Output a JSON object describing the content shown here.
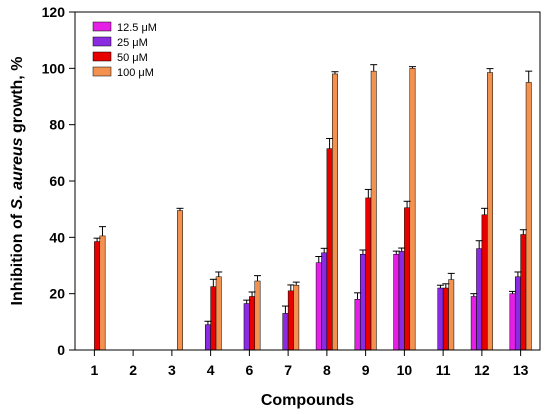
{
  "chart_data": {
    "type": "bar",
    "xlabel": "Compounds",
    "ylabel": {
      "prefix": "Inhibition of ",
      "italic": "S. aureus",
      "suffix": " growth, %"
    },
    "ylim": [
      0,
      120
    ],
    "yticks": [
      "0",
      "20",
      "40",
      "60",
      "80",
      "100",
      "120"
    ],
    "categories": [
      "1",
      "2",
      "3",
      "4",
      "6",
      "7",
      "8",
      "9",
      "10",
      "11",
      "12",
      "13"
    ],
    "legend_position": "top-left",
    "grid": false,
    "series": [
      {
        "name": "12.5 μM",
        "color": "#e61fe6",
        "values": [
          null,
          null,
          null,
          null,
          null,
          null,
          31,
          18,
          34,
          null,
          19,
          20
        ],
        "errors": [
          null,
          null,
          null,
          null,
          null,
          null,
          2.2,
          2.3,
          1.1,
          null,
          1.0,
          0.8
        ]
      },
      {
        "name": "25 μM",
        "color": "#8a2be2",
        "values": [
          null,
          null,
          null,
          9,
          16.5,
          13,
          34.5,
          34,
          35,
          22,
          36,
          26
        ],
        "errors": [
          null,
          null,
          null,
          1.2,
          1.2,
          2.6,
          1.6,
          1.5,
          1.2,
          1.0,
          2.8,
          1.7
        ]
      },
      {
        "name": "50 μM",
        "color": "#e60000",
        "values": [
          38.5,
          null,
          null,
          22.5,
          19,
          21,
          71.5,
          54,
          50.5,
          22,
          48,
          41
        ],
        "errors": [
          1.2,
          null,
          null,
          2.6,
          1.6,
          2.1,
          3.6,
          3.0,
          2.3,
          1.5,
          2.3,
          1.7
        ]
      },
      {
        "name": "100 μM",
        "color": "#f39150",
        "values": [
          40.5,
          null,
          49.5,
          26,
          24.5,
          23,
          98,
          99,
          100,
          25,
          98.5,
          95
        ],
        "errors": [
          3.3,
          null,
          0.8,
          1.7,
          1.9,
          1.1,
          0.8,
          2.3,
          0.6,
          2.2,
          1.4,
          4.0
        ]
      }
    ]
  }
}
